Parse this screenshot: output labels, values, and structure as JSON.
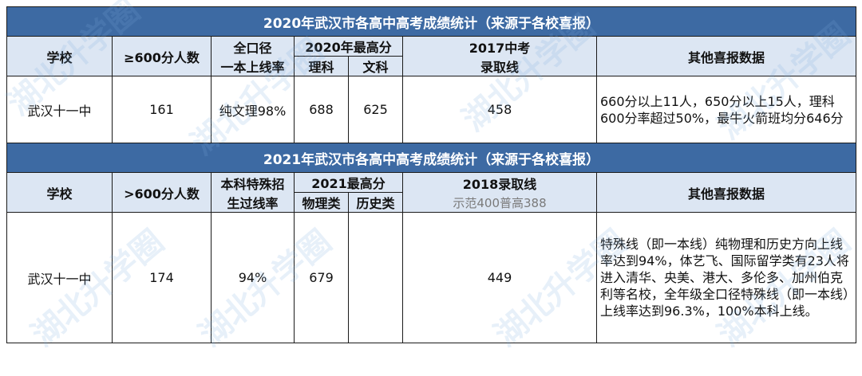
{
  "table2020": {
    "title": "2020年武汉市各高中高考成绩统计（来源于各校喜报）",
    "headers": {
      "school": "学校",
      "over600": "≥600分人数",
      "rate_line1": "全口径",
      "rate_line2": "一本上线率",
      "max_score": "2020年最高分",
      "science": "理科",
      "arts": "文科",
      "cutoff_line1": "2017中考",
      "cutoff_line2": "录取线",
      "other": "其他喜报数据"
    },
    "row": {
      "school": "武汉十一中",
      "over600": "161",
      "rate": "纯文理98%",
      "science": "688",
      "arts": "625",
      "cutoff": "458",
      "note": "660分以上11人，650分以上15人，理科600分率超过50%，最牛火箭班均分646分"
    }
  },
  "table2021": {
    "title": "2021年武汉市各高中高考成绩统计（来源于各校喜报）",
    "headers": {
      "school": "学校",
      "over600": ">600分人数",
      "rate_line1": "本科特殊招",
      "rate_line2": "生过线率",
      "max_score": "2021最高分",
      "physics": "物理类",
      "history": "历史类",
      "cutoff": "2018录取线",
      "cutoff_note": "示范400普高388",
      "other": "其他喜报数据"
    },
    "row": {
      "school": "武汉十一中",
      "over600": "174",
      "rate": "94%",
      "physics": "679",
      "history": "",
      "cutoff": "449",
      "note": "特殊线（即一本线）纯物理和历史方向上线率达到94%，体艺飞、国际留学类有23人将进入清华、央美、港大、多伦多、加州伯克利等名校，全年级全口径特殊线（即一本线）上线率达到96.3%，100%本科上线。"
    }
  },
  "watermark": "湖北升学圈"
}
